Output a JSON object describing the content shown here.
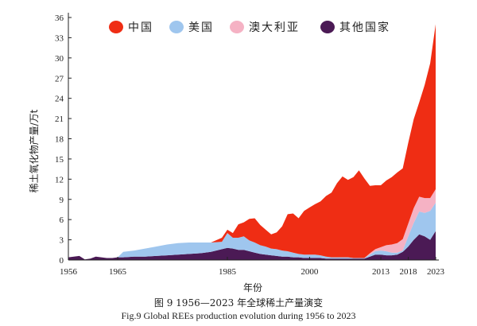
{
  "chart_data": {
    "type": "area",
    "stacked": true,
    "xlabel": "年份",
    "ylabel": "稀土氧化物产量/万t",
    "xlim": [
      1956,
      2023
    ],
    "ylim": [
      0,
      36
    ],
    "yticks": [
      0,
      3,
      6,
      9,
      12,
      15,
      18,
      21,
      24,
      27,
      30,
      33,
      36
    ],
    "xticks": [
      1956,
      1965,
      1985,
      2000,
      2013,
      2018,
      2023
    ],
    "grid": false,
    "legend_position": "top",
    "x": [
      1956,
      1958,
      1959,
      1960,
      1961,
      1962,
      1963,
      1964,
      1965,
      1966,
      1968,
      1970,
      1972,
      1974,
      1976,
      1978,
      1980,
      1982,
      1984,
      1985,
      1986,
      1987,
      1988,
      1989,
      1990,
      1991,
      1992,
      1993,
      1994,
      1995,
      1996,
      1997,
      1998,
      1999,
      2000,
      2001,
      2002,
      2003,
      2004,
      2005,
      2006,
      2007,
      2008,
      2009,
      2010,
      2011,
      2012,
      2013,
      2014,
      2015,
      2016,
      2017,
      2018,
      2019,
      2020,
      2021,
      2022,
      2023
    ],
    "series": [
      {
        "name": "其他国家",
        "color": "#4b1a55",
        "values": [
          0.4,
          0.6,
          0.1,
          0.2,
          0.5,
          0.4,
          0.3,
          0.3,
          0.4,
          0.4,
          0.5,
          0.5,
          0.6,
          0.7,
          0.8,
          0.9,
          1.0,
          1.2,
          1.6,
          1.8,
          1.7,
          1.5,
          1.5,
          1.3,
          1.1,
          0.9,
          0.8,
          0.7,
          0.6,
          0.5,
          0.5,
          0.4,
          0.4,
          0.3,
          0.3,
          0.3,
          0.3,
          0.2,
          0.2,
          0.2,
          0.2,
          0.2,
          0.2,
          0.2,
          0.2,
          0.5,
          0.8,
          0.8,
          0.7,
          0.7,
          0.8,
          1.2,
          2.0,
          3.0,
          3.8,
          3.5,
          3.0,
          4.3
        ]
      },
      {
        "name": "美国",
        "color": "#9fc6ee",
        "values": [
          0,
          0,
          0,
          0,
          0,
          0,
          0,
          0,
          0,
          0.8,
          0.9,
          1.2,
          1.4,
          1.6,
          1.7,
          1.7,
          1.6,
          1.4,
          1.1,
          2.2,
          1.6,
          1.8,
          2.0,
          1.6,
          1.5,
          1.3,
          1.2,
          1.0,
          1.0,
          0.9,
          0.8,
          0.7,
          0.5,
          0.5,
          0.5,
          0.5,
          0.4,
          0.3,
          0.2,
          0.2,
          0.2,
          0.2,
          0.1,
          0.1,
          0.1,
          0.3,
          0.5,
          0.6,
          0.6,
          0.4,
          0.3,
          0.2,
          1.5,
          2.5,
          3.4,
          3.5,
          4.3,
          4.2
        ]
      },
      {
        "name": "澳大利亚",
        "color": "#f5b2c4",
        "values": [
          0,
          0,
          0,
          0,
          0,
          0,
          0,
          0,
          0,
          0,
          0,
          0,
          0,
          0,
          0,
          0,
          0,
          0,
          0,
          0,
          0,
          0,
          0,
          0,
          0,
          0,
          0,
          0,
          0,
          0,
          0,
          0,
          0,
          0,
          0,
          0,
          0,
          0,
          0,
          0,
          0,
          0,
          0,
          0,
          0,
          0.2,
          0.3,
          0.5,
          0.9,
          1.2,
          1.4,
          1.7,
          1.9,
          2.2,
          2.2,
          2.2,
          1.9,
          2.0
        ]
      },
      {
        "name": "中国",
        "color": "#ef2d14",
        "values": [
          0,
          0,
          0,
          0,
          0,
          0,
          0,
          0,
          0,
          0,
          0,
          0,
          0,
          0,
          0,
          0,
          0,
          0,
          0.6,
          0.5,
          0.7,
          2.0,
          2.1,
          3.2,
          3.6,
          3.0,
          2.5,
          2.1,
          2.5,
          3.6,
          5.5,
          5.8,
          5.3,
          6.5,
          7.0,
          7.5,
          8.0,
          9.0,
          9.6,
          11.0,
          12.0,
          11.5,
          12.0,
          13.0,
          11.8,
          10.0,
          9.5,
          9.2,
          9.6,
          10.0,
          10.5,
          10.5,
          12.0,
          13.2,
          14.0,
          16.8,
          20.0,
          24.5
        ]
      }
    ]
  },
  "legend": {
    "items": [
      {
        "label": "中国",
        "color": "#ef2d14"
      },
      {
        "label": "美国",
        "color": "#9fc6ee"
      },
      {
        "label": "澳大利亚",
        "color": "#f5b2c4"
      },
      {
        "label": "其他国家",
        "color": "#4b1a55"
      }
    ]
  },
  "caption": {
    "cn": "图 9 1956—2023 年全球稀土产量演变",
    "en": "Fig.9 Global REEs production evolution during 1956 to 2023"
  }
}
